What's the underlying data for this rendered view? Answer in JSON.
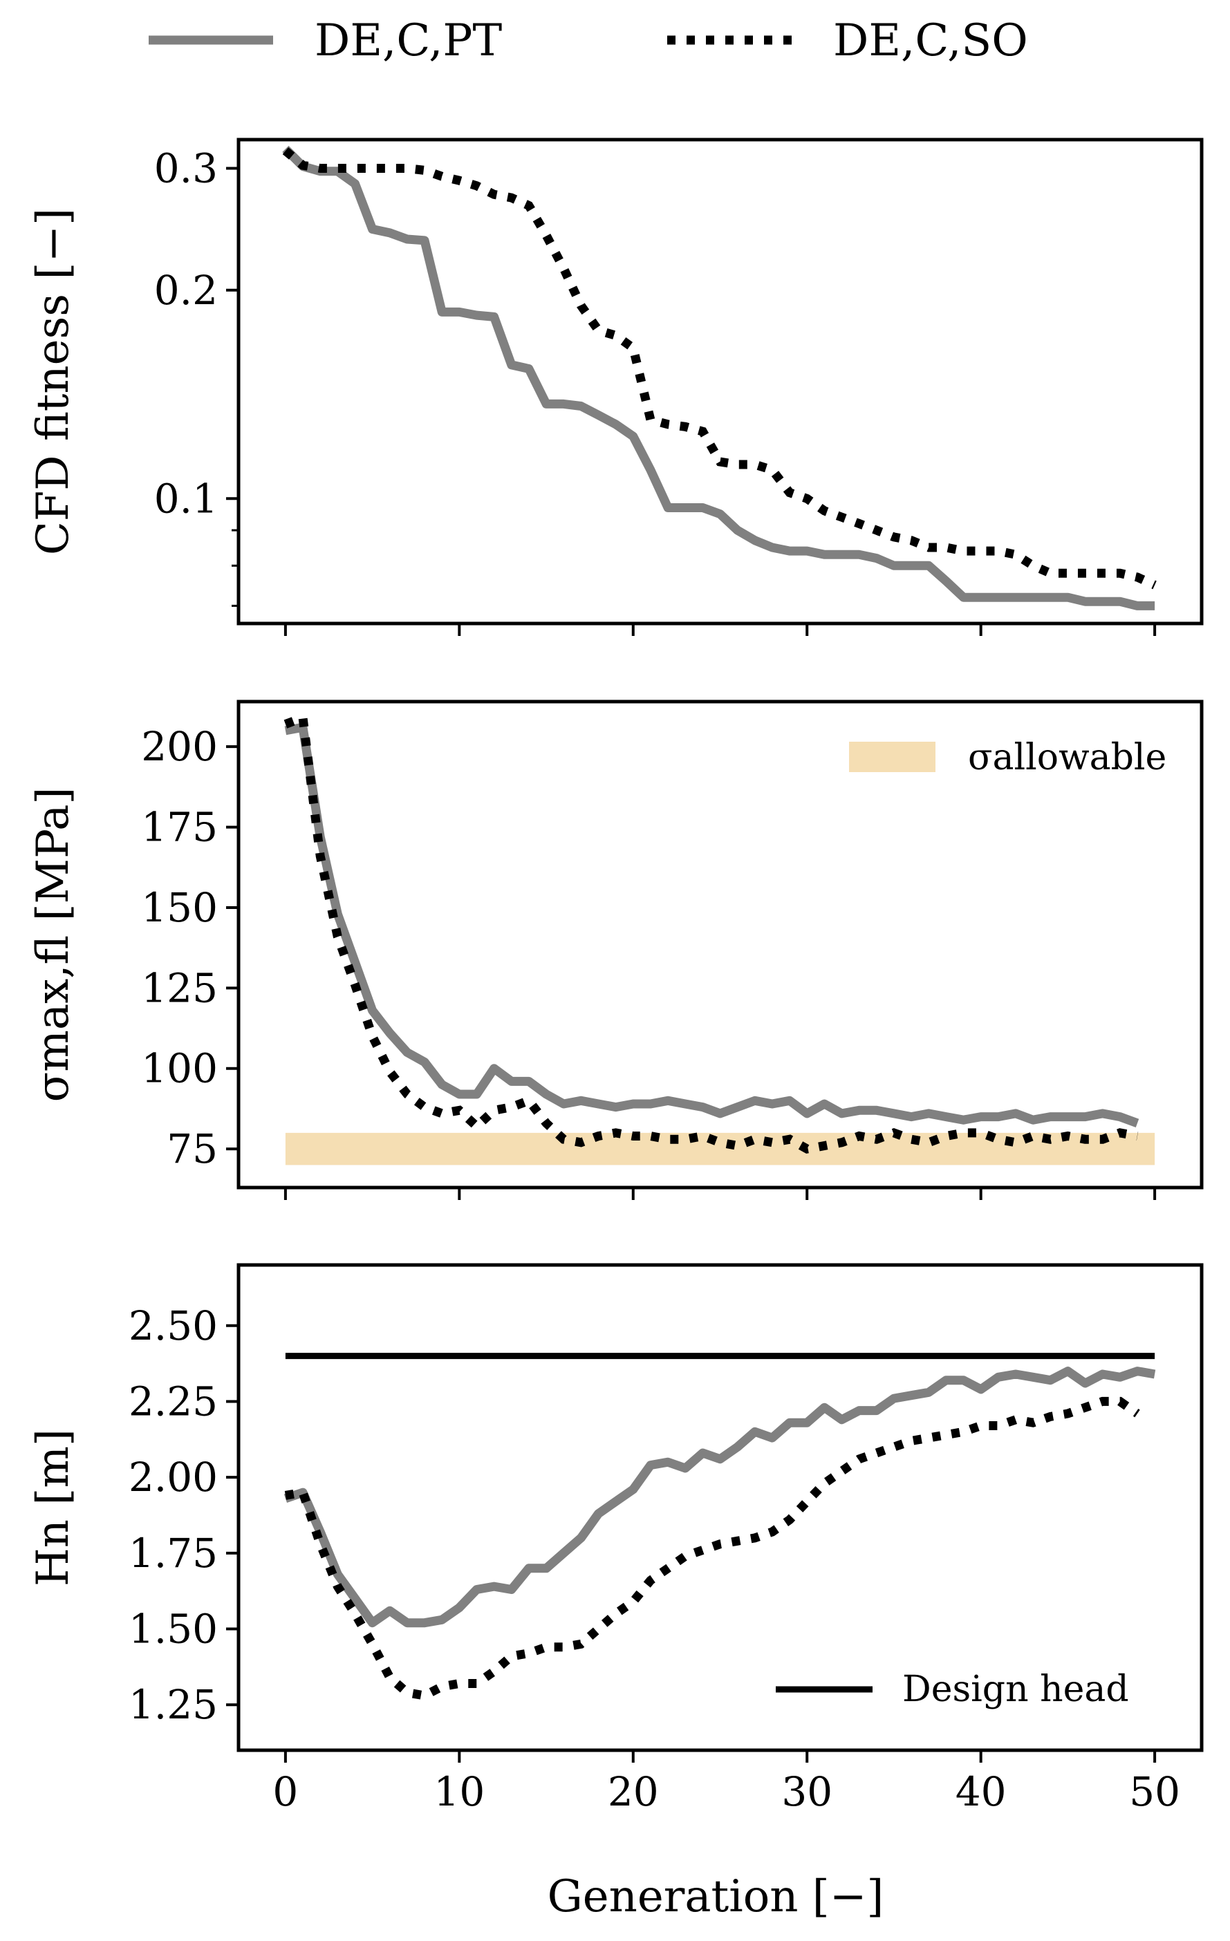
{
  "legend": {
    "items": [
      {
        "label": "DE,C,PT",
        "color": "#808080",
        "style": "solid"
      },
      {
        "label": "DE,C,SO",
        "color": "#000000",
        "style": "dotted"
      }
    ]
  },
  "xaxis": {
    "label": "Generation [−]",
    "ticks": [
      0,
      10,
      20,
      30,
      40,
      50
    ],
    "tick_labels": [
      "0",
      "10",
      "20",
      "30",
      "40",
      "50"
    ],
    "range": [
      -2.7,
      52.7
    ]
  },
  "chart_data": [
    {
      "type": "line",
      "ylabel": "CFD fitness [−]",
      "yscale": "log",
      "ylim": [
        0.066,
        0.33
      ],
      "yticks": [
        0.1,
        0.2,
        0.3
      ],
      "ytick_labels": [
        "0.1",
        "0.2",
        "0.3"
      ],
      "yminor_ticks": [
        0.07,
        0.08,
        0.09
      ],
      "series": [
        {
          "name": "DE,C,PT",
          "color": "#808080",
          "style": "solid",
          "x": [
            0,
            1,
            2,
            3,
            4,
            5,
            6,
            7,
            8,
            9,
            10,
            11,
            12,
            13,
            14,
            15,
            16,
            17,
            18,
            19,
            20,
            21,
            22,
            23,
            24,
            25,
            26,
            27,
            28,
            29,
            30,
            31,
            32,
            33,
            34,
            35,
            36,
            37,
            38,
            39,
            40,
            41,
            42,
            43,
            44,
            45,
            46,
            47,
            48,
            49,
            50
          ],
          "y": [
            0.32,
            0.302,
            0.297,
            0.297,
            0.285,
            0.245,
            0.242,
            0.237,
            0.236,
            0.186,
            0.186,
            0.184,
            0.183,
            0.156,
            0.154,
            0.137,
            0.137,
            0.136,
            0.132,
            0.128,
            0.123,
            0.11,
            0.097,
            0.097,
            0.097,
            0.095,
            0.09,
            0.087,
            0.085,
            0.084,
            0.084,
            0.083,
            0.083,
            0.083,
            0.082,
            0.08,
            0.08,
            0.08,
            0.076,
            0.072,
            0.072,
            0.072,
            0.072,
            0.072,
            0.072,
            0.072,
            0.071,
            0.071,
            0.071,
            0.07,
            0.07
          ]
        },
        {
          "name": "DE,C,SO",
          "color": "#000000",
          "style": "dotted",
          "x": [
            0,
            1,
            2,
            3,
            4,
            5,
            6,
            7,
            8,
            9,
            10,
            11,
            12,
            13,
            14,
            15,
            16,
            17,
            18,
            19,
            20,
            21,
            22,
            23,
            24,
            25,
            26,
            27,
            28,
            29,
            30,
            31,
            32,
            33,
            34,
            35,
            36,
            37,
            38,
            39,
            40,
            41,
            42,
            43,
            44,
            45,
            46,
            47,
            48,
            49,
            50
          ],
          "y": [
            0.318,
            0.303,
            0.3,
            0.3,
            0.3,
            0.3,
            0.3,
            0.3,
            0.298,
            0.292,
            0.288,
            0.283,
            0.275,
            0.272,
            0.265,
            0.24,
            0.215,
            0.19,
            0.175,
            0.172,
            0.165,
            0.13,
            0.128,
            0.127,
            0.125,
            0.113,
            0.112,
            0.112,
            0.11,
            0.102,
            0.1,
            0.096,
            0.094,
            0.092,
            0.09,
            0.088,
            0.087,
            0.085,
            0.085,
            0.084,
            0.084,
            0.084,
            0.083,
            0.08,
            0.078,
            0.078,
            0.078,
            0.078,
            0.078,
            0.077,
            0.075
          ]
        }
      ]
    },
    {
      "type": "line",
      "ylabel": "σmax,fl [MPa]",
      "ylim": [
        63,
        214
      ],
      "yticks": [
        75,
        100,
        125,
        150,
        175,
        200
      ],
      "ytick_labels": [
        "75",
        "100",
        "125",
        "150",
        "175",
        "200"
      ],
      "band": {
        "label": "σallowable",
        "y0": 70,
        "y1": 80,
        "x0": 0,
        "x1": 50,
        "color": "#f5deb3"
      },
      "series": [
        {
          "name": "DE,C,PT",
          "color": "#808080",
          "style": "solid",
          "x": [
            0,
            1,
            2,
            3,
            4,
            5,
            6,
            7,
            8,
            9,
            10,
            11,
            12,
            13,
            14,
            15,
            16,
            17,
            18,
            19,
            20,
            21,
            22,
            23,
            24,
            25,
            26,
            27,
            28,
            29,
            30,
            31,
            32,
            33,
            34,
            35,
            36,
            37,
            38,
            39,
            40,
            41,
            42,
            43,
            44,
            45,
            46,
            47,
            48,
            49
          ],
          "y": [
            205,
            206,
            172,
            148,
            133,
            118,
            111,
            105,
            102,
            95,
            92,
            92,
            100,
            96,
            96,
            92,
            89,
            90,
            89,
            88,
            89,
            89,
            90,
            89,
            88,
            86,
            88,
            90,
            89,
            90,
            86,
            89,
            86,
            87,
            87,
            86,
            85,
            86,
            85,
            84,
            85,
            85,
            86,
            84,
            85,
            85,
            85,
            86,
            85,
            83
          ]
        },
        {
          "name": "DE,C,SO",
          "color": "#000000",
          "style": "dotted",
          "x": [
            0,
            1,
            2,
            3,
            4,
            5,
            6,
            7,
            8,
            9,
            10,
            11,
            12,
            13,
            14,
            15,
            16,
            17,
            18,
            19,
            20,
            21,
            22,
            23,
            24,
            25,
            26,
            27,
            28,
            29,
            30,
            31,
            32,
            33,
            34,
            35,
            36,
            37,
            38,
            39,
            40,
            41,
            42,
            43,
            44,
            45,
            46,
            47,
            48,
            49
          ],
          "y": [
            207,
            209,
            166,
            141,
            126,
            110,
            99,
            92,
            88,
            86,
            87,
            82,
            87,
            88,
            90,
            83,
            78,
            77,
            79,
            80,
            79,
            79,
            78,
            78,
            79,
            77,
            76,
            78,
            77,
            78,
            75,
            76,
            77,
            79,
            78,
            80,
            78,
            77,
            79,
            80,
            80,
            78,
            77,
            79,
            78,
            79,
            78,
            78,
            80,
            79
          ]
        }
      ]
    },
    {
      "type": "line",
      "ylabel": "Hn [m]",
      "ylim": [
        1.1,
        2.7
      ],
      "yticks": [
        1.25,
        1.5,
        1.75,
        2.0,
        2.25,
        2.5
      ],
      "ytick_labels": [
        "1.25",
        "1.50",
        "1.75",
        "2.00",
        "2.25",
        "2.50"
      ],
      "reference_line": {
        "label": "Design head",
        "y": 2.4,
        "x0": 0,
        "x1": 50,
        "color": "#000000"
      },
      "legend_position": "lower-right",
      "series": [
        {
          "name": "DE,C,PT",
          "color": "#808080",
          "style": "solid",
          "x": [
            0,
            1,
            2,
            3,
            4,
            5,
            6,
            7,
            8,
            9,
            10,
            11,
            12,
            13,
            14,
            15,
            16,
            17,
            18,
            19,
            20,
            21,
            22,
            23,
            24,
            25,
            26,
            27,
            28,
            29,
            30,
            31,
            32,
            33,
            34,
            35,
            36,
            37,
            38,
            39,
            40,
            41,
            42,
            43,
            44,
            45,
            46,
            47,
            48,
            49,
            50
          ],
          "y": [
            1.93,
            1.95,
            1.82,
            1.68,
            1.6,
            1.52,
            1.56,
            1.52,
            1.52,
            1.53,
            1.57,
            1.63,
            1.64,
            1.63,
            1.7,
            1.7,
            1.75,
            1.8,
            1.88,
            1.92,
            1.96,
            2.04,
            2.05,
            2.03,
            2.08,
            2.06,
            2.1,
            2.15,
            2.13,
            2.18,
            2.18,
            2.23,
            2.19,
            2.22,
            2.22,
            2.26,
            2.27,
            2.28,
            2.32,
            2.32,
            2.29,
            2.33,
            2.34,
            2.33,
            2.32,
            2.35,
            2.31,
            2.34,
            2.33,
            2.35,
            2.34
          ]
        },
        {
          "name": "DE,C,SO",
          "color": "#000000",
          "style": "dotted",
          "x": [
            0,
            1,
            2,
            3,
            4,
            5,
            6,
            7,
            8,
            9,
            10,
            11,
            12,
            13,
            14,
            15,
            16,
            17,
            18,
            19,
            20,
            21,
            22,
            23,
            24,
            25,
            26,
            27,
            28,
            29,
            30,
            31,
            32,
            33,
            34,
            35,
            36,
            37,
            38,
            39,
            40,
            41,
            42,
            43,
            44,
            45,
            46,
            47,
            48,
            49
          ],
          "y": [
            1.94,
            1.95,
            1.78,
            1.64,
            1.55,
            1.45,
            1.34,
            1.29,
            1.28,
            1.31,
            1.32,
            1.32,
            1.36,
            1.41,
            1.42,
            1.44,
            1.44,
            1.45,
            1.5,
            1.55,
            1.59,
            1.66,
            1.7,
            1.74,
            1.76,
            1.78,
            1.79,
            1.8,
            1.82,
            1.86,
            1.92,
            1.98,
            2.02,
            2.06,
            2.08,
            2.1,
            2.12,
            2.13,
            2.14,
            2.15,
            2.17,
            2.17,
            2.19,
            2.18,
            2.2,
            2.21,
            2.23,
            2.25,
            2.25,
            2.21
          ]
        }
      ]
    }
  ]
}
